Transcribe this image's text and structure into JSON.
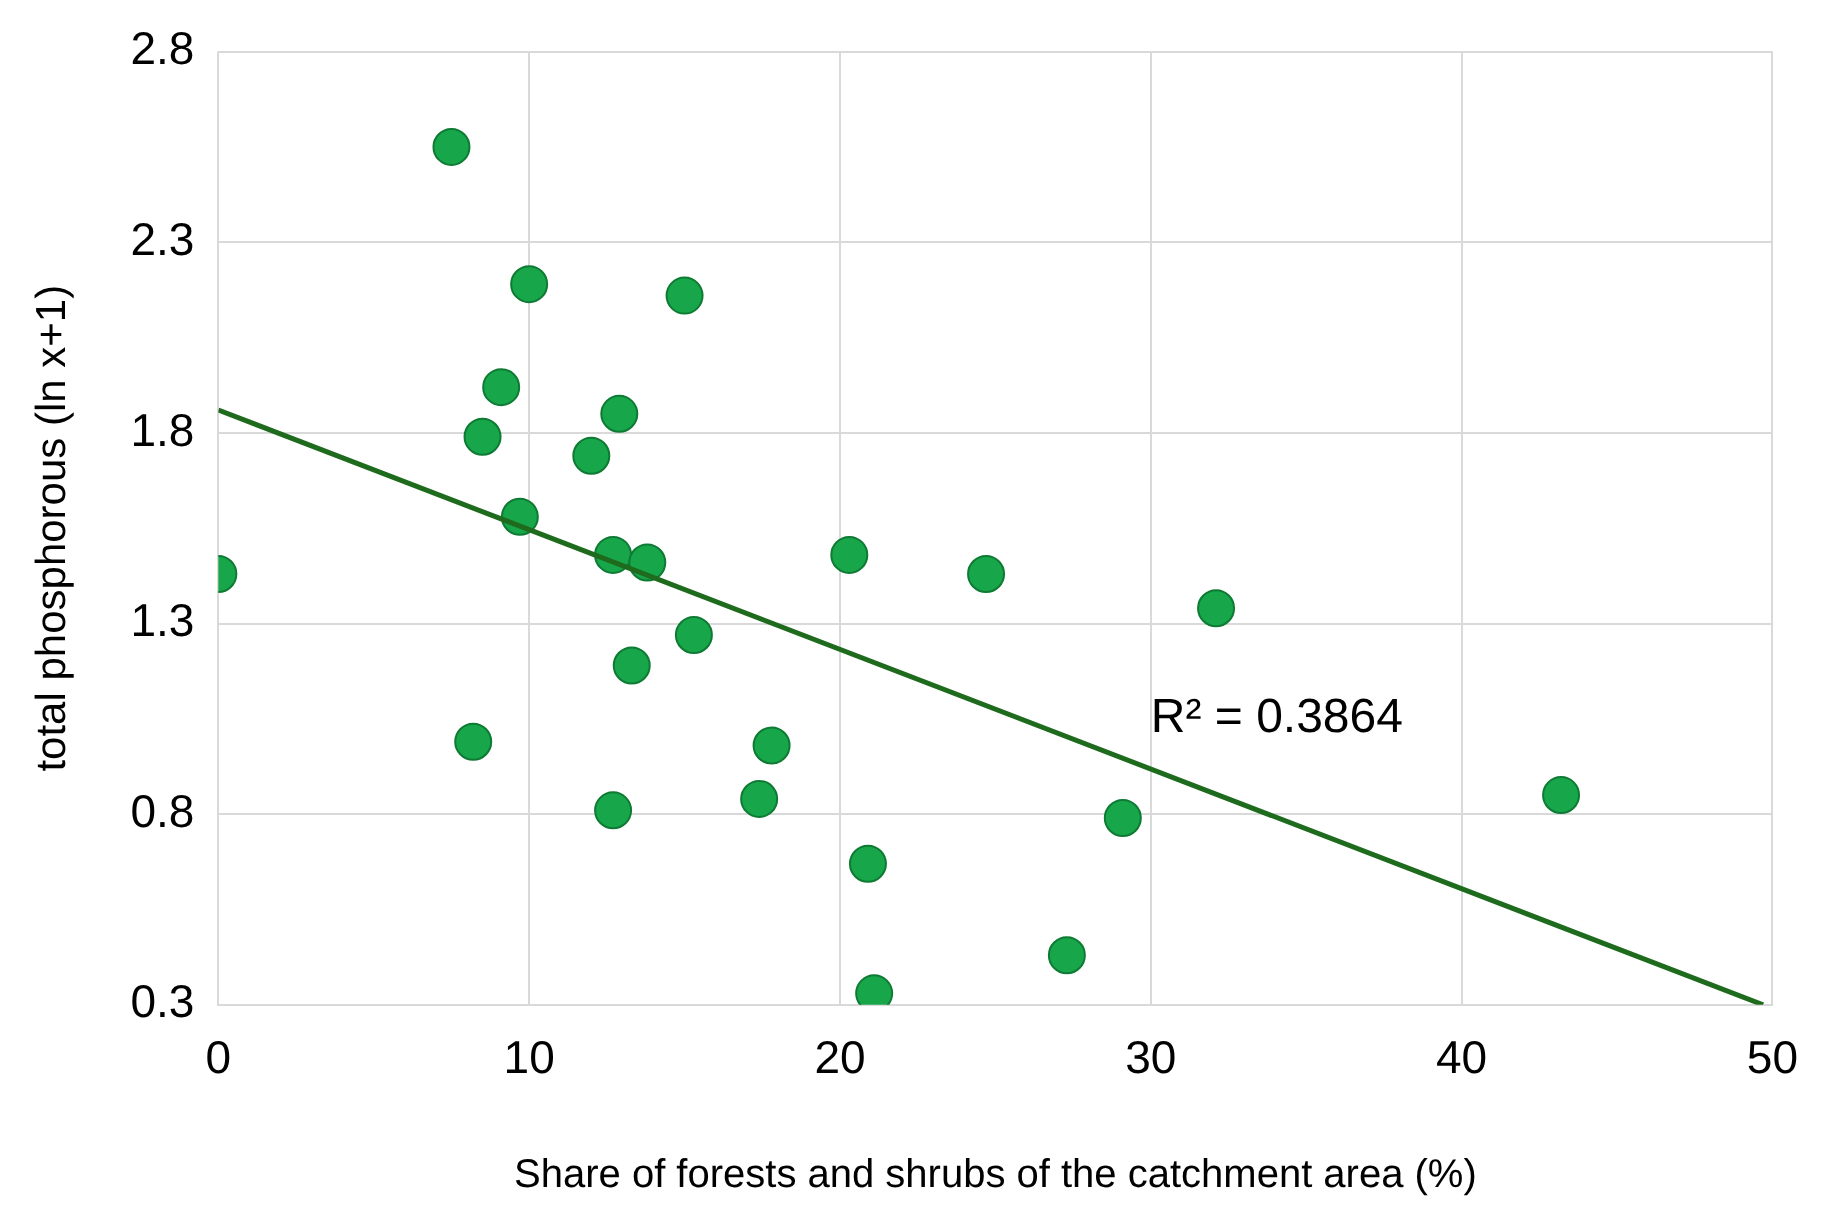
{
  "chart_data": {
    "type": "scatter",
    "xlabel": "Share of forests and shrubs of the catchment area (%)",
    "ylabel": "total phosphorous (ln x+1)",
    "xlim": [
      0,
      50
    ],
    "xticks": [
      0,
      10,
      20,
      30,
      40,
      50
    ],
    "ylim": [
      0.3,
      2.8
    ],
    "yticks": [
      0.3,
      0.8,
      1.3,
      1.8,
      2.3,
      2.8
    ],
    "grid": true,
    "legend": false,
    "annotations": [
      "R² = 0.3864"
    ],
    "series": [
      {
        "marker": "circle",
        "color": "#17a74a",
        "x": [
          0,
          7.5,
          10,
          15,
          9.1,
          8.5,
          12.9,
          12,
          9.7,
          12.7,
          13.8,
          20.3,
          24.7,
          32.1,
          13.3,
          15.3,
          8.2,
          17.8,
          12.7,
          17.4,
          29.1,
          43.2,
          20.9,
          27.3,
          21.1
        ],
        "values": [
          1.43,
          2.55,
          2.19,
          2.16,
          1.92,
          1.79,
          1.85,
          1.74,
          1.58,
          1.48,
          1.46,
          1.48,
          1.43,
          1.34,
          1.19,
          1.27,
          0.99,
          0.98,
          0.81,
          0.84,
          0.79,
          0.85,
          0.67,
          0.43,
          0.33
        ]
      },
      {
        "type": "line",
        "color": "#1e6b1e",
        "x": [
          0,
          49.7
        ],
        "values": [
          1.86,
          0.3
        ]
      }
    ]
  }
}
